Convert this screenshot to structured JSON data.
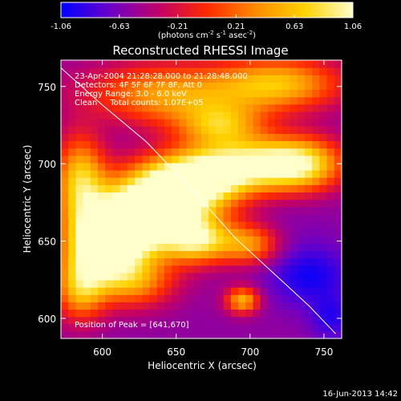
{
  "chart_data": {
    "type": "heatmap",
    "title": "Reconstructed RHESSI Image",
    "xlabel": "Heliocentric X (arcsec)",
    "ylabel": "Heliocentric Y (arcsec)",
    "xlim": [
      572,
      762
    ],
    "ylim": [
      587,
      767
    ],
    "xticks": [
      600,
      650,
      700,
      750
    ],
    "yticks": [
      600,
      650,
      700,
      750
    ],
    "colorbar": {
      "min": -1.06,
      "max": 1.06,
      "ticks": [
        "-1.06",
        "-0.63",
        "-0.21",
        "0.21",
        "0.63",
        "1.06"
      ],
      "unit_prefix": "(photons cm",
      "unit_exp1": "-2",
      "unit_mid": " s",
      "unit_exp2": "-1",
      "unit_mid2": " asec",
      "unit_exp3": "-2",
      "unit_suffix": ")",
      "colors": [
        "#0000ff",
        "#6a00c8",
        "#c0006a",
        "#ff2a00",
        "#ff8a00",
        "#ffd200",
        "#ffffcc"
      ]
    },
    "annotations": [
      "23-Apr-2004 21:28:28.000 to 21:28:48.000",
      "Detectors: 4F 5F 6F 7F 8F, Att 0",
      "Energy Range: 3.0 - 6.0 keV",
      "Clean     Total counts: 1.07E+05"
    ],
    "peak_label": "Position of Peak = [641,670]",
    "peak": [
      641,
      670
    ],
    "limb_curve": [
      [
        572,
        762
      ],
      [
        600,
        738
      ],
      [
        630,
        714
      ],
      [
        660,
        684
      ],
      [
        690,
        652
      ],
      [
        715,
        630
      ],
      [
        740,
        608
      ],
      [
        758,
        590
      ]
    ],
    "blobs": [
      {
        "x": 640,
        "y": 672,
        "sx": 28,
        "sy": 16,
        "v": 1.06
      },
      {
        "x": 615,
        "y": 660,
        "sx": 22,
        "sy": 14,
        "v": 0.85
      },
      {
        "x": 600,
        "y": 645,
        "sx": 18,
        "sy": 14,
        "v": 0.7
      },
      {
        "x": 660,
        "y": 690,
        "sx": 26,
        "sy": 12,
        "v": 0.8
      },
      {
        "x": 700,
        "y": 700,
        "sx": 30,
        "sy": 12,
        "v": 0.7
      },
      {
        "x": 735,
        "y": 700,
        "sx": 20,
        "sy": 12,
        "v": 0.55
      },
      {
        "x": 585,
        "y": 690,
        "sx": 12,
        "sy": 20,
        "v": 0.65
      },
      {
        "x": 640,
        "y": 745,
        "sx": 40,
        "sy": 14,
        "v": 0.5
      },
      {
        "x": 720,
        "y": 752,
        "sx": 30,
        "sy": 12,
        "v": 0.55
      },
      {
        "x": 680,
        "y": 725,
        "sx": 20,
        "sy": 10,
        "v": 0.4
      },
      {
        "x": 620,
        "y": 625,
        "sx": 20,
        "sy": 12,
        "v": 0.45
      },
      {
        "x": 585,
        "y": 620,
        "sx": 12,
        "sy": 15,
        "v": 0.5
      },
      {
        "x": 695,
        "y": 612,
        "sx": 8,
        "sy": 6,
        "v": 0.55
      },
      {
        "x": 665,
        "y": 650,
        "sx": 16,
        "sy": 10,
        "v": 0.6
      },
      {
        "x": 700,
        "y": 648,
        "sx": 14,
        "sy": 9,
        "v": 0.35
      },
      {
        "x": 740,
        "y": 628,
        "sx": 20,
        "sy": 14,
        "v": -1.0
      },
      {
        "x": 755,
        "y": 600,
        "sx": 10,
        "sy": 10,
        "v": -0.9
      },
      {
        "x": 600,
        "y": 740,
        "sx": 25,
        "sy": 15,
        "v": -0.7
      },
      {
        "x": 720,
        "y": 665,
        "sx": 22,
        "sy": 14,
        "v": -0.6
      }
    ],
    "background": -0.55
  },
  "footer_date": "16-Jun-2013 14:42"
}
